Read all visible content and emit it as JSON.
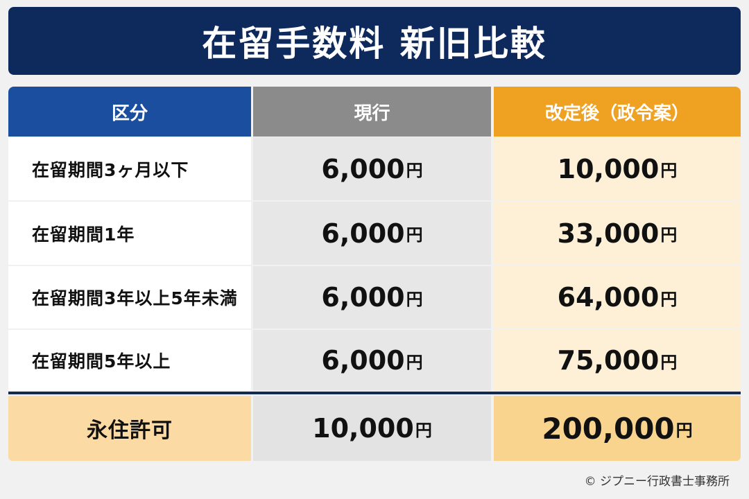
{
  "title": "在留手数料 新旧比較",
  "table": {
    "header": [
      "区分",
      "現行",
      "改定後（政令案）"
    ],
    "rows": [
      [
        "在留期間3ヶ月以下",
        {
          "amount": "6,000",
          "unit": "円"
        },
        {
          "amount": "10,000",
          "unit": "円"
        }
      ],
      [
        "在留期間1年",
        {
          "amount": "6,000",
          "unit": "円"
        },
        {
          "amount": "33,000",
          "unit": "円"
        }
      ],
      [
        "在留期間3年以上5年未満",
        {
          "amount": "6,000",
          "unit": "円"
        },
        {
          "amount": "64,000",
          "unit": "円"
        }
      ],
      [
        "在留期間5年以上",
        {
          "amount": "6,000",
          "unit": "円"
        },
        {
          "amount": "75,000",
          "unit": "円"
        }
      ],
      [
        "永住許可",
        {
          "amount": "10,000",
          "unit": "円"
        },
        {
          "amount": "200,000",
          "unit": "円"
        }
      ]
    ]
  },
  "credit": "© ジプニー行政書士事務所"
}
